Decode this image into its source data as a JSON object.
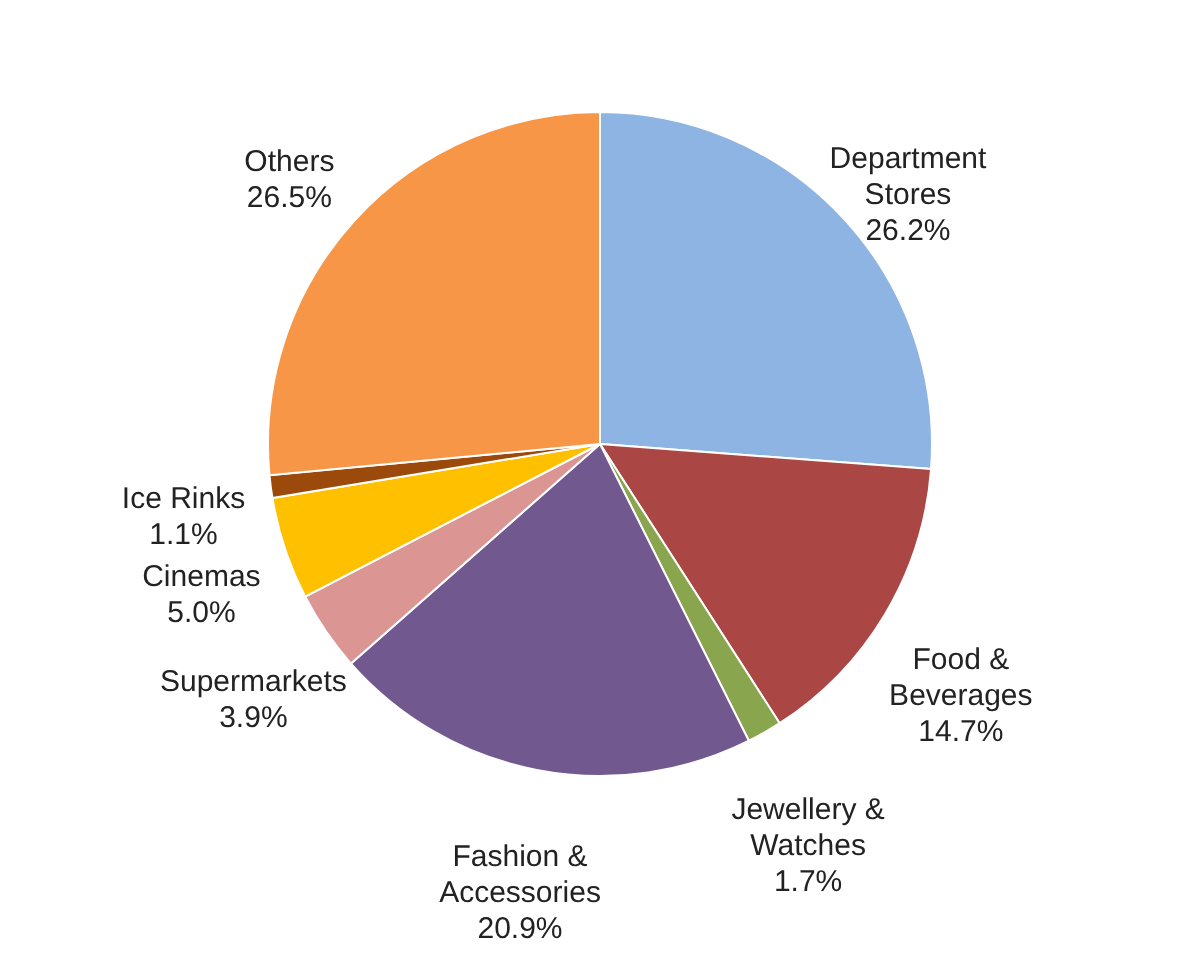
{
  "chart_data": {
    "type": "pie",
    "categories": [
      "Department Stores",
      "Food & Beverages",
      "Jewellery & Watches",
      "Fashion & Accessories",
      "Supermarkets",
      "Cinemas",
      "Ice Rinks",
      "Others"
    ],
    "values": [
      26.2,
      14.7,
      1.7,
      20.9,
      3.9,
      5.0,
      1.1,
      26.5
    ],
    "value_labels": [
      "26.2%",
      "14.7%",
      "1.7%",
      "20.9%",
      "3.9%",
      "5.0%",
      "1.1%",
      "26.5%"
    ],
    "colors": [
      "#8eb4e3",
      "#aa4643",
      "#89a54e",
      "#71588f",
      "#db9694",
      "#ffc000",
      "#9c4a0b",
      "#f79646"
    ]
  }
}
